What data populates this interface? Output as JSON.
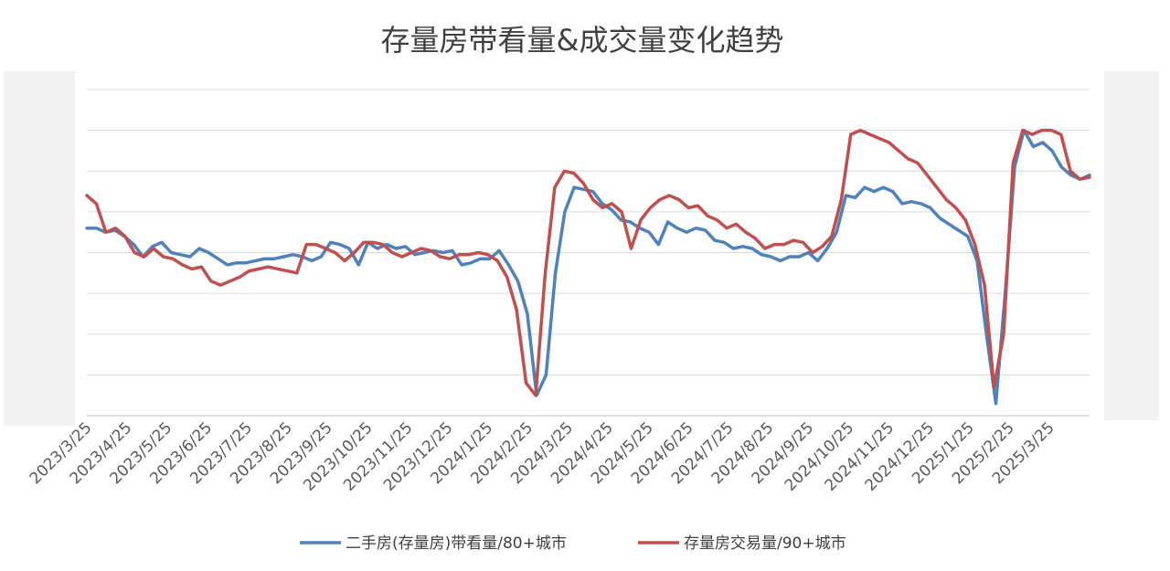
{
  "chart_data": {
    "type": "line",
    "title": "存量房带看量&成交量变化趋势",
    "x_tick_labels": [
      "2023/3/25",
      "2023/4/25",
      "2023/5/25",
      "2023/6/25",
      "2023/7/25",
      "2023/8/25",
      "2023/9/25",
      "2023/10/25",
      "2023/11/25",
      "2023/12/25",
      "2024/1/25",
      "2024/2/25",
      "2024/3/25",
      "2024/4/25",
      "2024/5/25",
      "2024/6/25",
      "2024/7/25",
      "2024/8/25",
      "2024/9/25",
      "2024/10/25",
      "2024/11/25",
      "2024/12/25",
      "2025/1/25",
      "2025/2/25",
      "2025/3/25"
    ],
    "ylim": [
      0,
      8
    ],
    "grid": true,
    "legend_position": "bottom",
    "series": [
      {
        "name": "二手房(存量房)带看量/80+城市",
        "color": "#4f81bd",
        "values": [
          4.6,
          4.6,
          4.5,
          4.55,
          4.4,
          4.2,
          3.9,
          4.15,
          4.25,
          4.0,
          3.95,
          3.9,
          4.1,
          4.0,
          3.85,
          3.7,
          3.75,
          3.75,
          3.8,
          3.85,
          3.85,
          3.9,
          3.95,
          3.9,
          3.8,
          3.9,
          4.25,
          4.2,
          4.1,
          3.7,
          4.25,
          4.1,
          4.2,
          4.1,
          4.15,
          3.95,
          4.0,
          4.05,
          4.0,
          4.05,
          3.7,
          3.75,
          3.85,
          3.85,
          4.05,
          3.7,
          3.3,
          2.5,
          0.5,
          1.0,
          3.5,
          5.0,
          5.6,
          5.55,
          5.5,
          5.2,
          5.05,
          4.8,
          4.75,
          4.6,
          4.5,
          4.2,
          4.75,
          4.6,
          4.5,
          4.6,
          4.55,
          4.3,
          4.25,
          4.1,
          4.15,
          4.1,
          3.95,
          3.9,
          3.8,
          3.9,
          3.9,
          4.0,
          3.8,
          4.1,
          4.5,
          5.4,
          5.35,
          5.6,
          5.5,
          5.6,
          5.5,
          5.2,
          5.25,
          5.2,
          5.1,
          4.85,
          4.7,
          4.55,
          4.4,
          3.8,
          2.0,
          0.3,
          3.0,
          6.1,
          7.0,
          6.6,
          6.7,
          6.5,
          6.1,
          5.9,
          5.8,
          5.9
        ]
      },
      {
        "name": "存量房交易量/90+城市",
        "color": "#c0504d",
        "values": [
          5.4,
          5.2,
          4.5,
          4.6,
          4.4,
          4.0,
          3.9,
          4.1,
          3.9,
          3.85,
          3.7,
          3.6,
          3.65,
          3.3,
          3.2,
          3.3,
          3.4,
          3.55,
          3.6,
          3.65,
          3.6,
          3.55,
          3.5,
          4.2,
          4.2,
          4.1,
          4.0,
          3.8,
          4.0,
          4.25,
          4.25,
          4.2,
          4.0,
          3.9,
          4.0,
          4.1,
          4.05,
          3.9,
          3.85,
          3.95,
          3.95,
          4.0,
          3.95,
          3.8,
          3.4,
          2.6,
          0.8,
          0.5,
          3.5,
          5.6,
          6.0,
          5.95,
          5.7,
          5.3,
          5.1,
          5.2,
          5.0,
          4.1,
          4.8,
          5.1,
          5.3,
          5.4,
          5.3,
          5.1,
          5.15,
          4.9,
          4.8,
          4.6,
          4.7,
          4.5,
          4.35,
          4.1,
          4.2,
          4.2,
          4.3,
          4.25,
          4.0,
          4.15,
          4.4,
          5.3,
          6.9,
          7.0,
          6.9,
          6.8,
          6.7,
          6.5,
          6.3,
          6.2,
          5.9,
          5.6,
          5.3,
          5.1,
          4.8,
          4.2,
          3.2,
          0.7,
          2.0,
          6.2,
          7.0,
          6.9,
          7.0,
          7.0,
          6.9,
          6.0,
          5.8,
          5.85
        ]
      }
    ]
  }
}
